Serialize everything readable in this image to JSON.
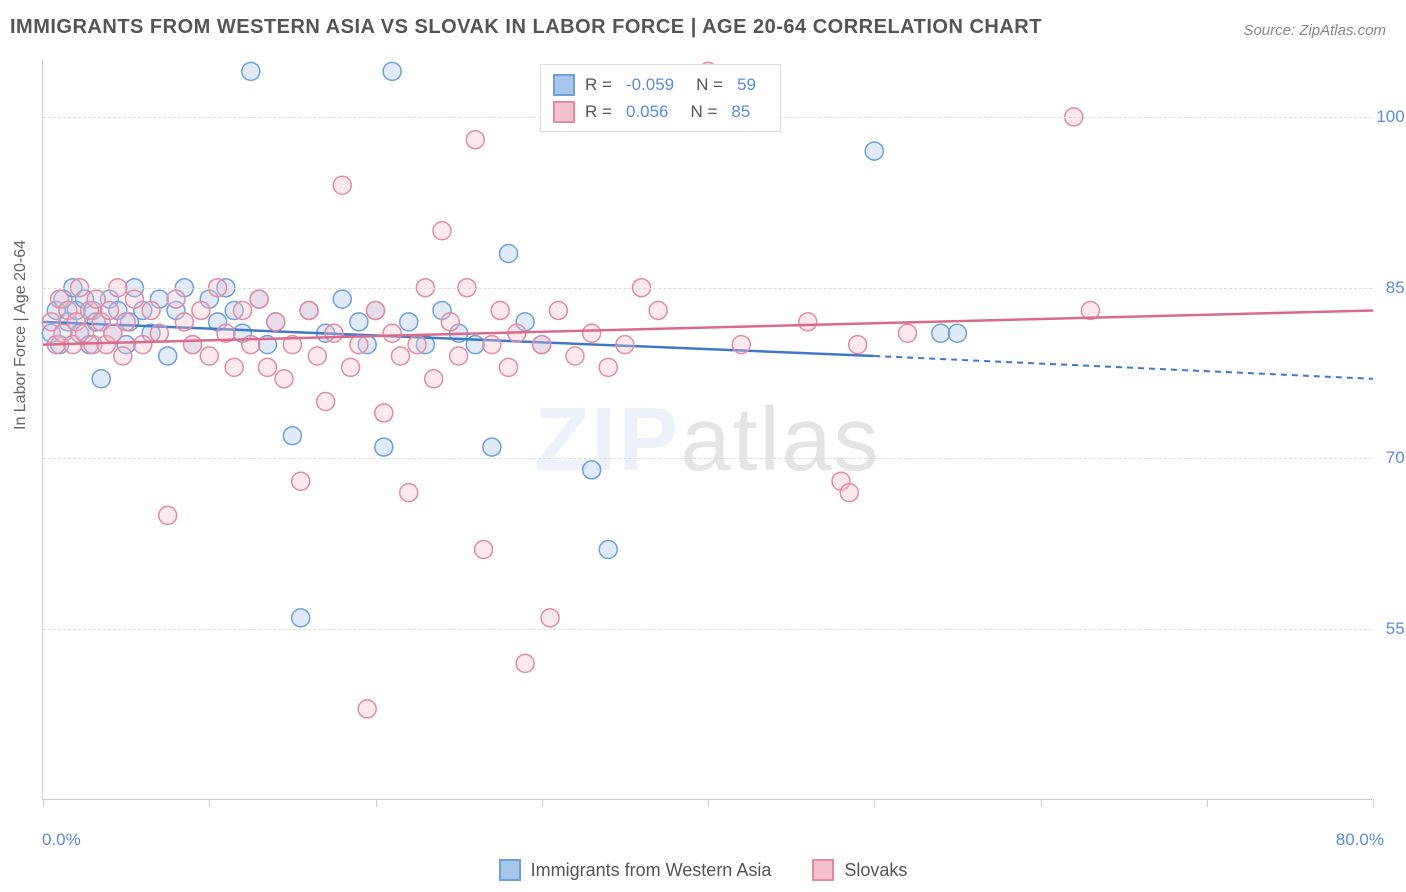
{
  "title": "IMMIGRANTS FROM WESTERN ASIA VS SLOVAK IN LABOR FORCE | AGE 20-64 CORRELATION CHART",
  "source": "Source: ZipAtlas.com",
  "watermark_a": "ZIP",
  "watermark_b": "atlas",
  "chart": {
    "type": "scatter",
    "background_color": "#ffffff",
    "grid_color": "#dddddd",
    "axis_color": "#cccccc",
    "tick_label_color": "#5b8dd6",
    "axis_title_color": "#666666",
    "y_axis_title": "In Labor Force | Age 20-64",
    "xlim": [
      0,
      80
    ],
    "ylim": [
      40,
      105
    ],
    "x_ticks": [
      0,
      10,
      20,
      30,
      40,
      50,
      60,
      70,
      80
    ],
    "x_tick_labels": {
      "0": "0.0%",
      "80": "80.0%"
    },
    "y_ticks": [
      55,
      70,
      85,
      100
    ],
    "y_tick_labels": {
      "55": "55.0%",
      "70": "70.0%",
      "85": "85.0%",
      "100": "100.0%"
    },
    "marker_radius": 9,
    "marker_stroke_width": 1.5,
    "marker_fill_opacity": 0.35,
    "line_width": 2.5,
    "series": [
      {
        "id": "western_asia",
        "label": "Immigrants from Western Asia",
        "color_stroke": "#6ea0de",
        "color_fill": "#a8c6eb",
        "line_color": "#3d78c9",
        "r": "-0.059",
        "n": "59",
        "trend": {
          "x1": 0,
          "y1": 82,
          "x2_solid": 50,
          "y2_solid": 79,
          "x2_dash": 80,
          "y2_dash": 77
        },
        "points": [
          [
            0.5,
            81
          ],
          [
            0.8,
            83
          ],
          [
            1,
            80
          ],
          [
            1.2,
            84
          ],
          [
            1.5,
            82
          ],
          [
            1.8,
            85
          ],
          [
            2,
            83
          ],
          [
            2.2,
            81
          ],
          [
            2.5,
            84
          ],
          [
            2.8,
            80
          ],
          [
            3,
            83
          ],
          [
            3.2,
            82
          ],
          [
            3.5,
            77
          ],
          [
            4,
            84
          ],
          [
            4.2,
            81
          ],
          [
            4.5,
            83
          ],
          [
            5,
            80
          ],
          [
            5.2,
            82
          ],
          [
            5.5,
            85
          ],
          [
            6,
            83
          ],
          [
            6.5,
            81
          ],
          [
            7,
            84
          ],
          [
            7.5,
            79
          ],
          [
            8,
            83
          ],
          [
            8.5,
            85
          ],
          [
            9,
            80
          ],
          [
            10,
            84
          ],
          [
            10.5,
            82
          ],
          [
            11,
            85
          ],
          [
            11.5,
            83
          ],
          [
            12,
            81
          ],
          [
            12.5,
            104
          ],
          [
            13,
            84
          ],
          [
            13.5,
            80
          ],
          [
            14,
            82
          ],
          [
            15,
            72
          ],
          [
            15.5,
            56
          ],
          [
            16,
            83
          ],
          [
            17,
            81
          ],
          [
            18,
            84
          ],
          [
            19,
            82
          ],
          [
            19.5,
            80
          ],
          [
            20,
            83
          ],
          [
            20.5,
            71
          ],
          [
            21,
            104
          ],
          [
            22,
            82
          ],
          [
            23,
            80
          ],
          [
            24,
            83
          ],
          [
            25,
            81
          ],
          [
            26,
            80
          ],
          [
            27,
            71
          ],
          [
            28,
            88
          ],
          [
            29,
            82
          ],
          [
            30,
            80
          ],
          [
            33,
            69
          ],
          [
            34,
            62
          ],
          [
            50,
            97
          ],
          [
            54,
            81
          ],
          [
            55,
            81
          ]
        ]
      },
      {
        "id": "slovaks",
        "label": "Slovaks",
        "color_stroke": "#e48ba4",
        "color_fill": "#f3c0ce",
        "line_color": "#d96a8a",
        "r": "0.056",
        "n": "85",
        "trend": {
          "x1": 0,
          "y1": 80,
          "x2_solid": 80,
          "y2_solid": 83
        },
        "points": [
          [
            0.5,
            82
          ],
          [
            0.8,
            80
          ],
          [
            1,
            84
          ],
          [
            1.2,
            81
          ],
          [
            1.5,
            83
          ],
          [
            1.8,
            80
          ],
          [
            2,
            82
          ],
          [
            2.2,
            85
          ],
          [
            2.5,
            81
          ],
          [
            2.8,
            83
          ],
          [
            3,
            80
          ],
          [
            3.2,
            84
          ],
          [
            3.5,
            82
          ],
          [
            3.8,
            80
          ],
          [
            4,
            83
          ],
          [
            4.2,
            81
          ],
          [
            4.5,
            85
          ],
          [
            4.8,
            79
          ],
          [
            5,
            82
          ],
          [
            5.5,
            84
          ],
          [
            6,
            80
          ],
          [
            6.5,
            83
          ],
          [
            7,
            81
          ],
          [
            7.5,
            65
          ],
          [
            8,
            84
          ],
          [
            8.5,
            82
          ],
          [
            9,
            80
          ],
          [
            9.5,
            83
          ],
          [
            10,
            79
          ],
          [
            10.5,
            85
          ],
          [
            11,
            81
          ],
          [
            11.5,
            78
          ],
          [
            12,
            83
          ],
          [
            12.5,
            80
          ],
          [
            13,
            84
          ],
          [
            13.5,
            78
          ],
          [
            14,
            82
          ],
          [
            14.5,
            77
          ],
          [
            15,
            80
          ],
          [
            15.5,
            68
          ],
          [
            16,
            83
          ],
          [
            16.5,
            79
          ],
          [
            17,
            75
          ],
          [
            17.5,
            81
          ],
          [
            18,
            94
          ],
          [
            18.5,
            78
          ],
          [
            19,
            80
          ],
          [
            19.5,
            48
          ],
          [
            20,
            83
          ],
          [
            20.5,
            74
          ],
          [
            21,
            81
          ],
          [
            21.5,
            79
          ],
          [
            22,
            67
          ],
          [
            22.5,
            80
          ],
          [
            23,
            85
          ],
          [
            23.5,
            77
          ],
          [
            24,
            90
          ],
          [
            24.5,
            82
          ],
          [
            25,
            79
          ],
          [
            25.5,
            85
          ],
          [
            26,
            98
          ],
          [
            26.5,
            62
          ],
          [
            27,
            80
          ],
          [
            27.5,
            83
          ],
          [
            28,
            78
          ],
          [
            28.5,
            81
          ],
          [
            29,
            52
          ],
          [
            30,
            80
          ],
          [
            30.5,
            56
          ],
          [
            31,
            83
          ],
          [
            32,
            79
          ],
          [
            33,
            81
          ],
          [
            34,
            78
          ],
          [
            35,
            80
          ],
          [
            36,
            85
          ],
          [
            37,
            83
          ],
          [
            40,
            104
          ],
          [
            42,
            80
          ],
          [
            46,
            82
          ],
          [
            48,
            68
          ],
          [
            48.5,
            67
          ],
          [
            49,
            80
          ],
          [
            52,
            81
          ],
          [
            62,
            100
          ],
          [
            63,
            83
          ]
        ]
      }
    ],
    "bottom_legend": [
      {
        "swatch_stroke": "#6ea0de",
        "swatch_fill": "#a8c6eb",
        "label": "Immigrants from Western Asia"
      },
      {
        "swatch_stroke": "#e48ba4",
        "swatch_fill": "#f3c0ce",
        "label": "Slovaks"
      }
    ],
    "stats_legend": {
      "r_label": "R =",
      "n_label": "N ="
    }
  }
}
